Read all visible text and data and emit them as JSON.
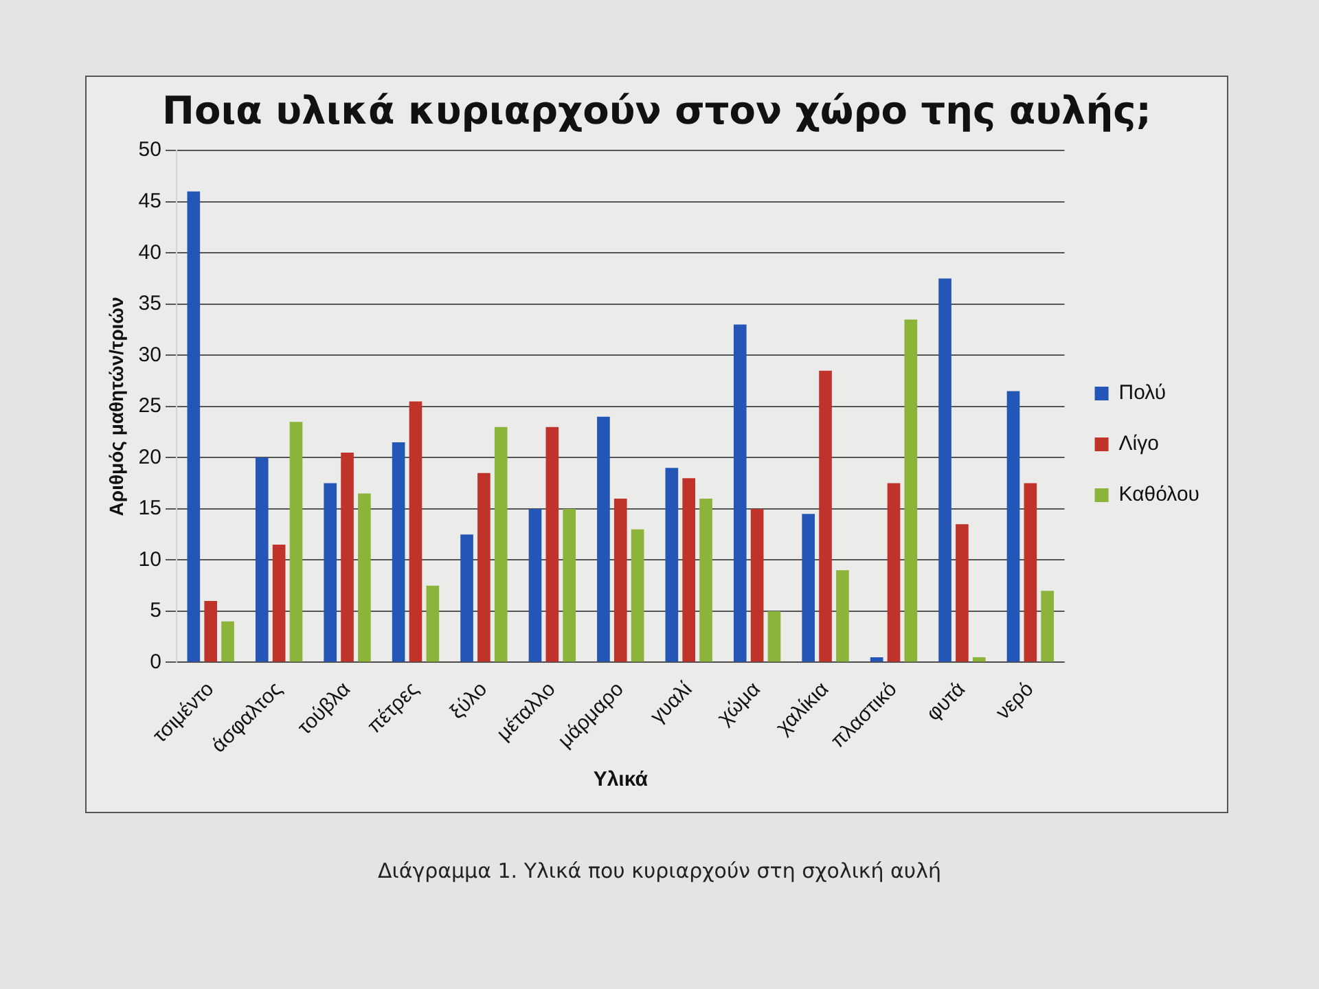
{
  "chart_data": {
    "type": "bar",
    "title": "Ποια υλικά κυριαρχούν στον χώρο της αυλής;",
    "xlabel": "Υλικά",
    "ylabel": "Αριθμός μαθητών/τριών",
    "categories": [
      "τσιμέντο",
      "άσφαλτος",
      "τούβλα",
      "πέτρες",
      "ξύλο",
      "μέταλλο",
      "μάρμαρο",
      "γυαλί",
      "χώμα",
      "χαλίκια",
      "πλαστικό",
      "φυτά",
      "νερό"
    ],
    "series": [
      {
        "name": "Πολύ",
        "color": "#2456b8",
        "values": [
          46,
          20,
          17.5,
          21.5,
          12.5,
          15,
          24,
          19,
          33,
          14.5,
          0.5,
          37.5,
          26.5
        ]
      },
      {
        "name": "Λίγο",
        "color": "#c0332b",
        "values": [
          6,
          11.5,
          20.5,
          25.5,
          18.5,
          23,
          16,
          18,
          15,
          28.5,
          17.5,
          13.5,
          17.5
        ]
      },
      {
        "name": "Καθόλου",
        "color": "#8cb33a",
        "values": [
          4,
          23.5,
          16.5,
          7.5,
          23,
          15,
          13,
          16,
          5,
          9,
          33.5,
          0.5,
          7
        ]
      }
    ],
    "ylim": [
      0,
      50
    ],
    "yticks": [
      0,
      5,
      10,
      15,
      20,
      25,
      30,
      35,
      40,
      45,
      50
    ],
    "grid": "y",
    "legend": "right",
    "annotations": [
      "Διάγραμμα 1. Υλικά που κυριαρχούν στη σχολική αυλή"
    ]
  }
}
